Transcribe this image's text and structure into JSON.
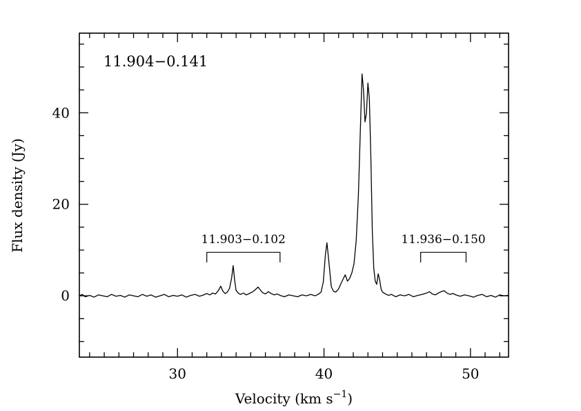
{
  "chart_data": {
    "type": "line",
    "title": "11.904−0.141",
    "xlabel_pre": "Velocity (km s",
    "xlabel_sup": "−1",
    "xlabel_post": ")",
    "ylabel": "Flux density (Jy)",
    "xlim": [
      23.3,
      52.6
    ],
    "ylim": [
      -13.4,
      57.4
    ],
    "xticks": [
      30,
      40,
      50
    ],
    "yticks": [
      0,
      20,
      40
    ],
    "x_minor_step": 1,
    "y_minor_step": 5,
    "line_color": "#000000",
    "background_color": "#ffffff",
    "annotations": [
      {
        "label": "11.903−0.102",
        "v_start": 32.0,
        "v_end": 37.0,
        "y": 9.5,
        "tick_drop": 2.2,
        "label_y": 11.5
      },
      {
        "label": "11.936−0.150",
        "v_start": 46.6,
        "v_end": 49.7,
        "y": 9.5,
        "tick_drop": 2.2,
        "label_y": 11.5
      }
    ],
    "series": [
      {
        "name": "spectrum",
        "points": [
          [
            23.3,
            0.0
          ],
          [
            23.5,
            0.3
          ],
          [
            23.7,
            -0.2
          ],
          [
            24.0,
            0.1
          ],
          [
            24.3,
            -0.3
          ],
          [
            24.6,
            0.2
          ],
          [
            24.9,
            0.0
          ],
          [
            25.2,
            -0.2
          ],
          [
            25.5,
            0.3
          ],
          [
            25.8,
            -0.1
          ],
          [
            26.1,
            0.1
          ],
          [
            26.4,
            -0.3
          ],
          [
            26.7,
            0.2
          ],
          [
            27.0,
            0.0
          ],
          [
            27.3,
            -0.2
          ],
          [
            27.6,
            0.3
          ],
          [
            27.9,
            -0.1
          ],
          [
            28.2,
            0.2
          ],
          [
            28.5,
            -0.3
          ],
          [
            28.8,
            0.0
          ],
          [
            29.1,
            0.3
          ],
          [
            29.4,
            -0.2
          ],
          [
            29.7,
            0.1
          ],
          [
            30.0,
            -0.1
          ],
          [
            30.3,
            0.2
          ],
          [
            30.6,
            -0.3
          ],
          [
            30.9,
            0.1
          ],
          [
            31.2,
            0.3
          ],
          [
            31.5,
            -0.1
          ],
          [
            31.8,
            0.2
          ],
          [
            32.0,
            0.5
          ],
          [
            32.2,
            0.2
          ],
          [
            32.4,
            0.6
          ],
          [
            32.6,
            0.4
          ],
          [
            32.8,
            1.2
          ],
          [
            32.95,
            2.1
          ],
          [
            33.1,
            1.0
          ],
          [
            33.25,
            0.5
          ],
          [
            33.4,
            0.8
          ],
          [
            33.55,
            1.6
          ],
          [
            33.7,
            4.0
          ],
          [
            33.8,
            6.6
          ],
          [
            33.9,
            3.5
          ],
          [
            34.0,
            1.2
          ],
          [
            34.15,
            0.6
          ],
          [
            34.3,
            0.3
          ],
          [
            34.5,
            0.6
          ],
          [
            34.7,
            0.2
          ],
          [
            34.9,
            0.5
          ],
          [
            35.1,
            0.8
          ],
          [
            35.3,
            1.3
          ],
          [
            35.5,
            1.9
          ],
          [
            35.65,
            1.3
          ],
          [
            35.8,
            0.7
          ],
          [
            36.0,
            0.4
          ],
          [
            36.2,
            0.9
          ],
          [
            36.4,
            0.5
          ],
          [
            36.6,
            0.2
          ],
          [
            36.8,
            0.4
          ],
          [
            37.0,
            0.1
          ],
          [
            37.3,
            -0.2
          ],
          [
            37.6,
            0.2
          ],
          [
            37.9,
            0.0
          ],
          [
            38.2,
            -0.2
          ],
          [
            38.5,
            0.2
          ],
          [
            38.8,
            0.0
          ],
          [
            39.1,
            0.3
          ],
          [
            39.4,
            0.0
          ],
          [
            39.6,
            0.3
          ],
          [
            39.8,
            0.8
          ],
          [
            39.95,
            3.0
          ],
          [
            40.1,
            9.0
          ],
          [
            40.2,
            11.6
          ],
          [
            40.35,
            7.0
          ],
          [
            40.5,
            2.0
          ],
          [
            40.65,
            1.0
          ],
          [
            40.8,
            0.8
          ],
          [
            41.0,
            1.5
          ],
          [
            41.15,
            2.6
          ],
          [
            41.3,
            3.6
          ],
          [
            41.45,
            4.6
          ],
          [
            41.6,
            3.2
          ],
          [
            41.75,
            3.8
          ],
          [
            41.9,
            5.0
          ],
          [
            42.05,
            7.0
          ],
          [
            42.2,
            12.0
          ],
          [
            42.35,
            22.0
          ],
          [
            42.5,
            38.0
          ],
          [
            42.6,
            48.5
          ],
          [
            42.7,
            45.0
          ],
          [
            42.8,
            38.0
          ],
          [
            42.9,
            40.0
          ],
          [
            43.0,
            46.5
          ],
          [
            43.1,
            43.0
          ],
          [
            43.2,
            30.0
          ],
          [
            43.3,
            14.0
          ],
          [
            43.4,
            6.0
          ],
          [
            43.5,
            3.2
          ],
          [
            43.6,
            2.5
          ],
          [
            43.7,
            4.8
          ],
          [
            43.8,
            3.5
          ],
          [
            43.9,
            1.5
          ],
          [
            44.0,
            0.8
          ],
          [
            44.2,
            0.4
          ],
          [
            44.4,
            0.1
          ],
          [
            44.6,
            0.3
          ],
          [
            44.9,
            -0.2
          ],
          [
            45.2,
            0.2
          ],
          [
            45.5,
            0.0
          ],
          [
            45.8,
            0.3
          ],
          [
            46.1,
            -0.2
          ],
          [
            46.4,
            0.1
          ],
          [
            46.7,
            0.3
          ],
          [
            47.0,
            0.6
          ],
          [
            47.2,
            0.9
          ],
          [
            47.4,
            0.4
          ],
          [
            47.6,
            0.2
          ],
          [
            47.8,
            0.6
          ],
          [
            48.0,
            0.9
          ],
          [
            48.2,
            1.1
          ],
          [
            48.4,
            0.6
          ],
          [
            48.6,
            0.3
          ],
          [
            48.8,
            0.5
          ],
          [
            49.0,
            0.2
          ],
          [
            49.3,
            -0.1
          ],
          [
            49.6,
            0.2
          ],
          [
            49.9,
            0.0
          ],
          [
            50.2,
            -0.3
          ],
          [
            50.5,
            0.1
          ],
          [
            50.8,
            0.3
          ],
          [
            51.1,
            -0.2
          ],
          [
            51.4,
            0.1
          ],
          [
            51.7,
            -0.3
          ],
          [
            52.0,
            0.2
          ],
          [
            52.3,
            0.0
          ],
          [
            52.6,
            0.1
          ]
        ]
      }
    ]
  }
}
